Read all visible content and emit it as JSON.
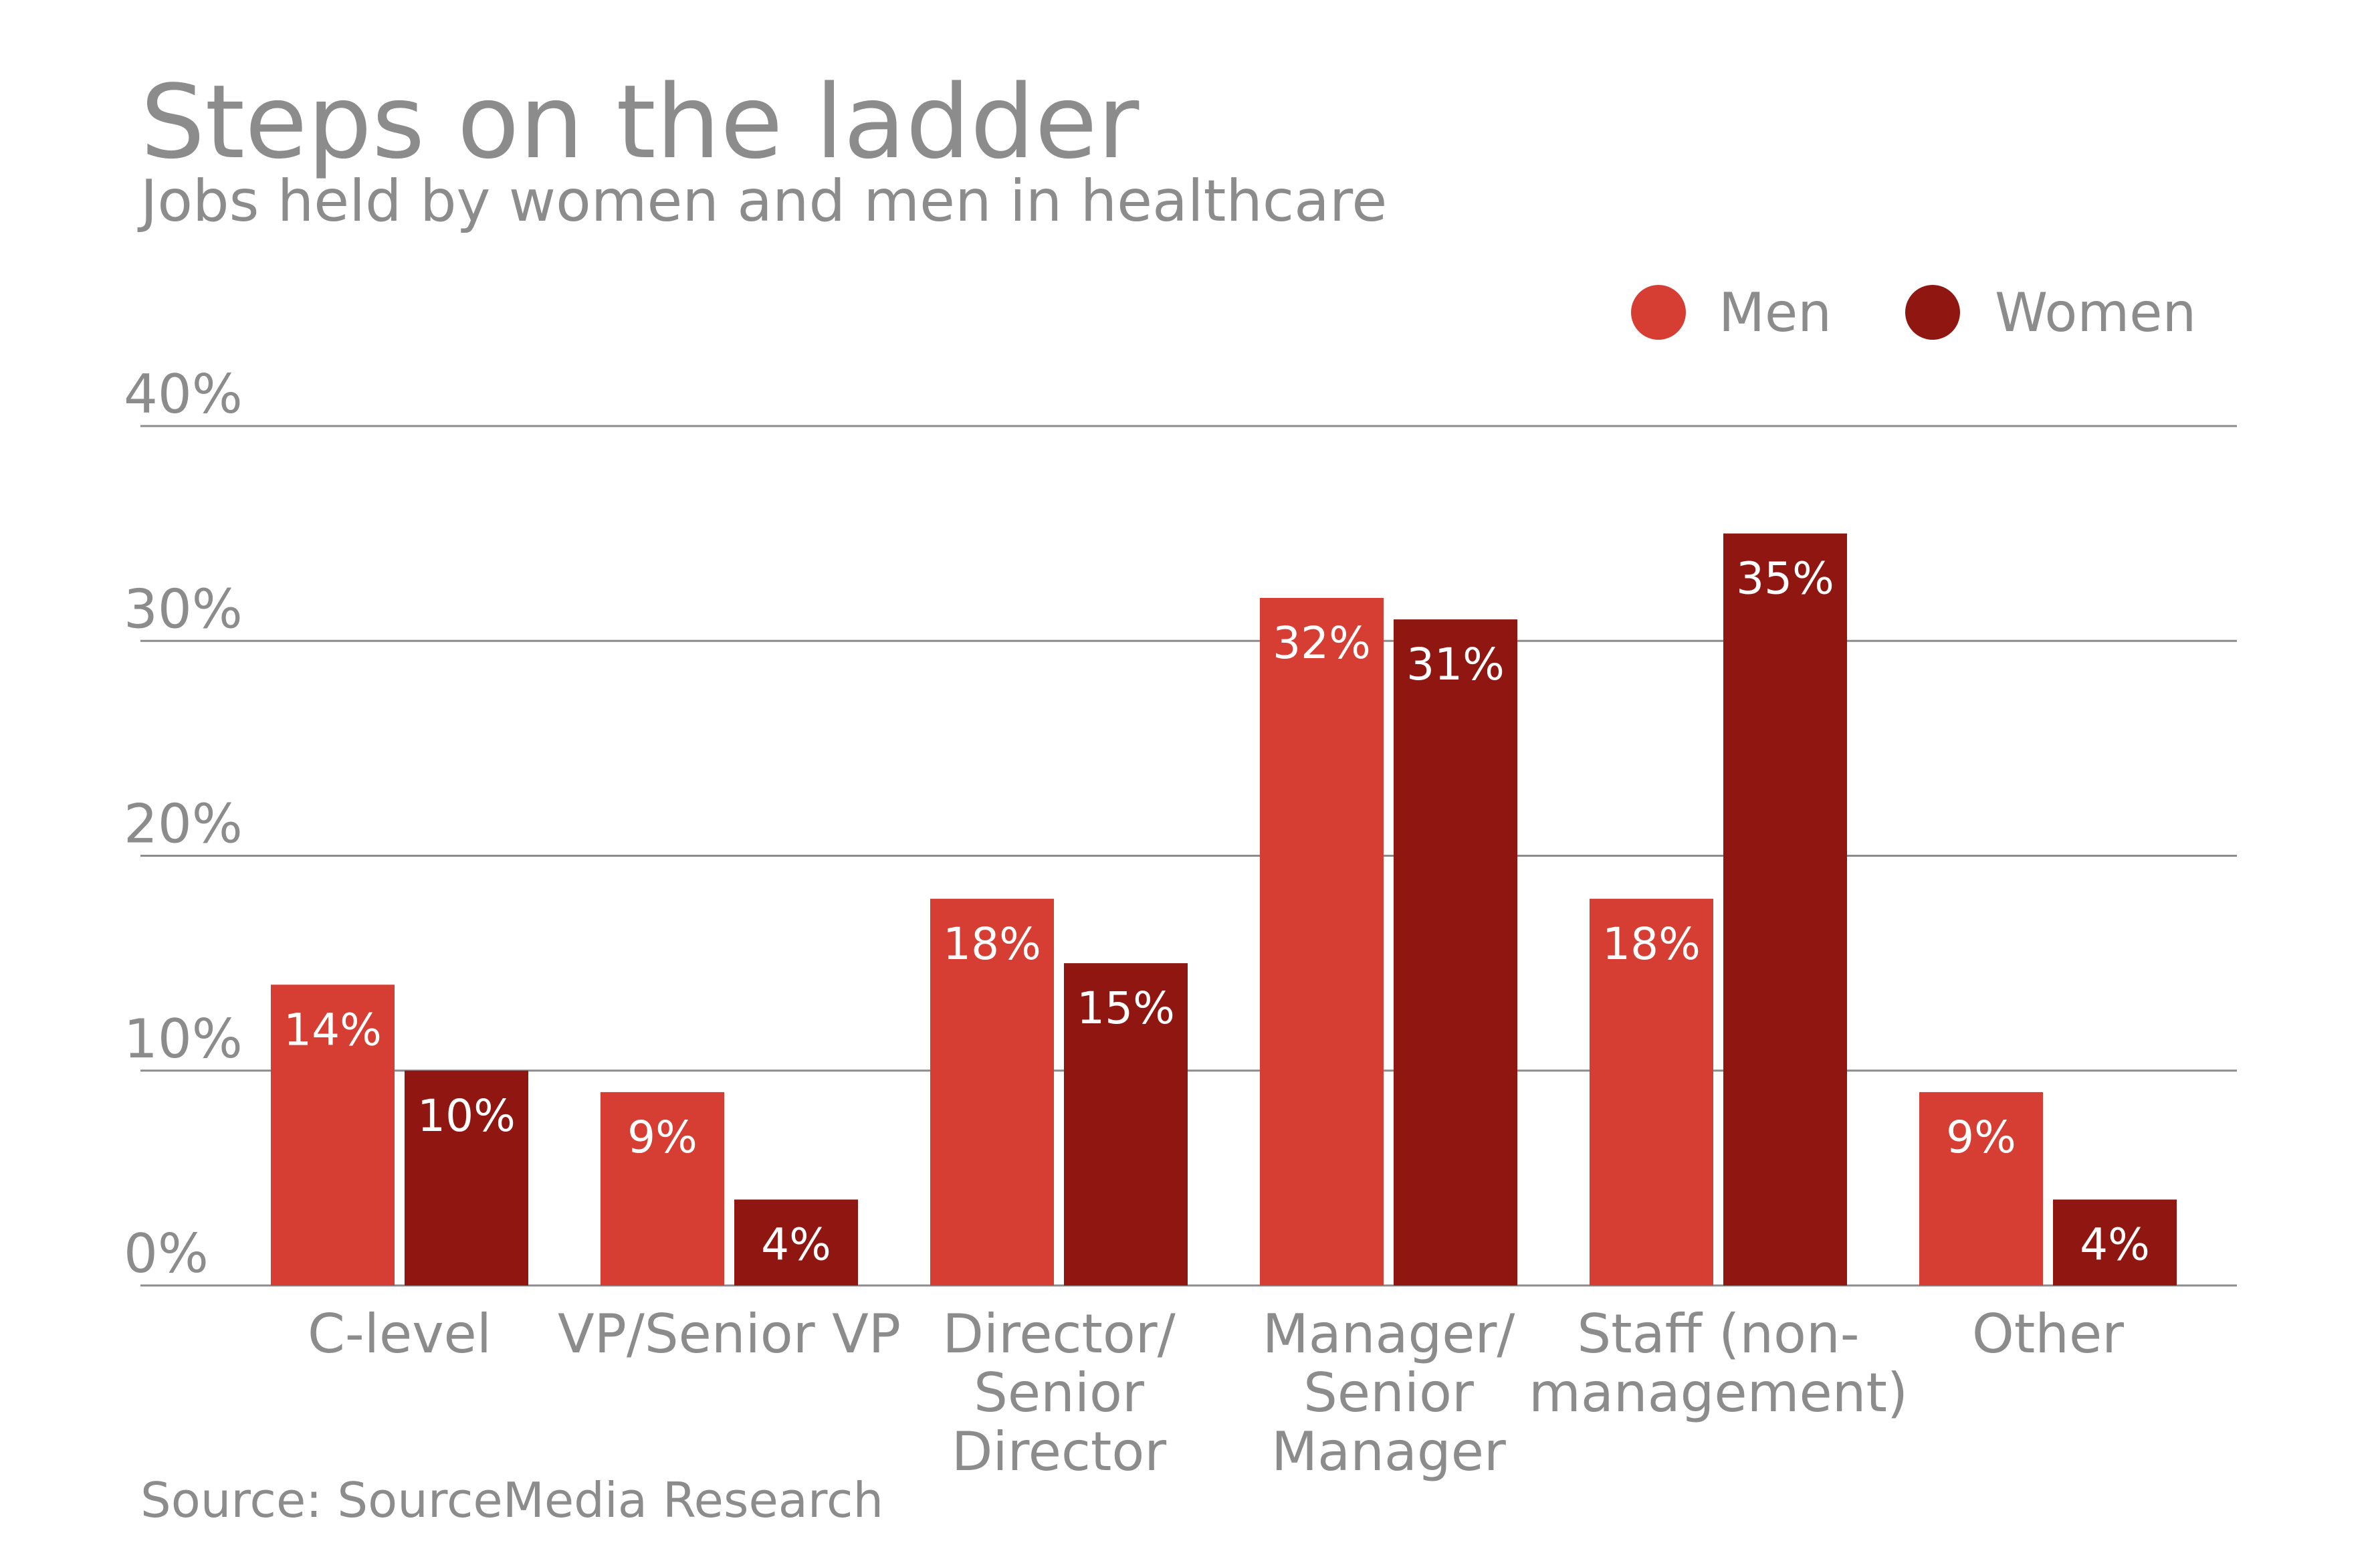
{
  "chart_data": {
    "type": "bar",
    "title": "Steps on the ladder",
    "subtitle": "Jobs held by women and men in healthcare",
    "categories": [
      [
        "C-level"
      ],
      [
        "VP/Senior VP"
      ],
      [
        "Director/",
        "Senior",
        "Director"
      ],
      [
        "Manager/",
        "Senior",
        "Manager"
      ],
      [
        "Staff (non-",
        "management)"
      ],
      [
        "Other"
      ]
    ],
    "series": [
      {
        "name": "Men",
        "values": [
          14,
          9,
          18,
          32,
          18,
          9
        ],
        "labels": [
          "14%",
          "9%",
          "18%",
          "32%",
          "18%",
          "9%"
        ]
      },
      {
        "name": "Women",
        "values": [
          10,
          4,
          15,
          31,
          35,
          4
        ],
        "labels": [
          "10%",
          "4%",
          "15%",
          "31%",
          "35%",
          "4%"
        ]
      }
    ],
    "ylim": [
      0,
      40
    ],
    "yticks": [
      0,
      10,
      20,
      30,
      40
    ],
    "ytick_labels": [
      "0%",
      "10%",
      "20%",
      "30%",
      "40%"
    ],
    "grid": true,
    "legend_position": "top-right",
    "colors": {
      "men": "#d63e33",
      "women": "#8f1611",
      "text": "#8c8c8c",
      "grid": "#8c8c8c",
      "bar_label": "#ffffff"
    },
    "source": "Source: SourceMedia Research"
  }
}
